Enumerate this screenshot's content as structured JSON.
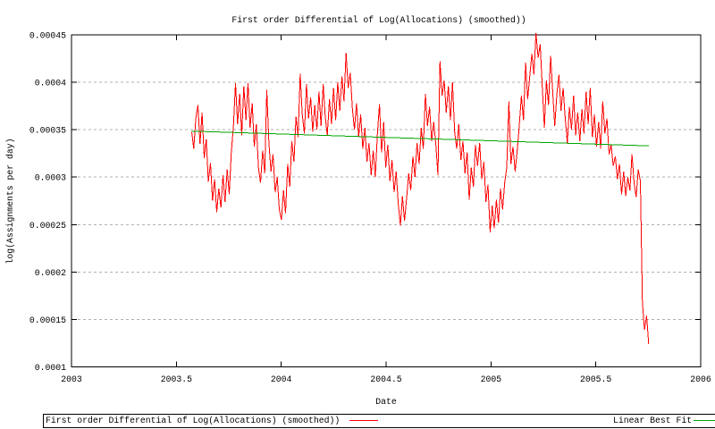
{
  "chart_data": {
    "type": "line",
    "title": "First order Differential of Log(Allocations) (smoothed))",
    "xlabel": "Date",
    "ylabel": "log(Assignments per day)",
    "xlim": [
      2003,
      2006
    ],
    "ylim": [
      0.0001,
      0.00045
    ],
    "grid": "horizontal-dashed",
    "legend_position": "bottom-strip-below-chart",
    "x_ticks": {
      "values": [
        2003,
        2003.5,
        2004,
        2004.5,
        2005,
        2005.5,
        2006
      ],
      "labels": [
        "2003",
        "2003.5",
        "2004",
        "2004.5",
        "2005",
        "2005.5",
        "2006"
      ]
    },
    "y_ticks": {
      "values": [
        0.0001,
        0.00015,
        0.0002,
        0.00025,
        0.0003,
        0.00035,
        0.0004,
        0.00045
      ],
      "labels": [
        "0.0001",
        "0.00015",
        "0.0002",
        "0.00025",
        "0.0003",
        "0.00035",
        "0.0004",
        "0.00045"
      ]
    },
    "series": [
      {
        "name": "First order Differential of Log(Allocations) (smoothed))",
        "color": "#ff0000",
        "x_start": 2003.573,
        "x_step": 0.00995,
        "y_unit": 1e-05,
        "values": [
          34.8,
          33.0,
          36.2,
          37.6,
          33.5,
          36.8,
          32.0,
          34.0,
          29.5,
          31.5,
          27.5,
          29.8,
          26.3,
          28.8,
          26.8,
          30.2,
          27.4,
          30.8,
          28.2,
          32.6,
          35.4,
          39.9,
          35.6,
          38.8,
          34.4,
          39.6,
          36.0,
          39.9,
          35.2,
          37.8,
          33.2,
          35.6,
          31.0,
          29.4,
          32.8,
          30.4,
          39.2,
          33.6,
          30.6,
          32.4,
          28.4,
          30.0,
          26.6,
          25.5,
          28.6,
          26.2,
          31.4,
          29.0,
          33.8,
          31.6,
          36.4,
          34.2,
          40.9,
          36.6,
          34.6,
          39.8,
          36.2,
          38.4,
          34.8,
          37.6,
          35.0,
          39.0,
          35.4,
          39.8,
          36.4,
          34.4,
          38.2,
          35.6,
          39.4,
          36.0,
          40.0,
          37.0,
          40.6,
          38.0,
          43.1,
          39.4,
          41.0,
          37.2,
          35.0,
          37.8,
          34.2,
          36.6,
          33.0,
          35.2,
          31.6,
          33.6,
          30.2,
          32.8,
          30.0,
          34.6,
          37.7,
          32.6,
          35.8,
          31.0,
          33.4,
          29.6,
          31.8,
          28.4,
          30.6,
          27.2,
          24.9,
          28.0,
          25.4,
          27.8,
          30.4,
          28.6,
          32.2,
          30.0,
          33.6,
          31.4,
          35.2,
          33.0,
          38.8,
          35.4,
          37.4,
          33.8,
          35.8,
          33.4,
          30.2,
          42.2,
          38.6,
          40.2,
          36.8,
          39.6,
          36.0,
          40.0,
          34.8,
          33.0,
          35.6,
          31.8,
          33.8,
          30.4,
          32.6,
          27.6,
          31.0,
          29.0,
          33.4,
          31.2,
          33.6,
          29.8,
          31.6,
          27.4,
          29.2,
          24.2,
          27.0,
          24.6,
          27.6,
          25.2,
          28.8,
          26.6,
          29.4,
          31.0,
          38.0,
          31.4,
          33.2,
          30.6,
          32.8,
          35.4,
          38.6,
          36.0,
          42.1,
          38.2,
          40.6,
          43.0,
          40.8,
          45.2,
          42.6,
          44.0,
          39.6,
          35.2,
          40.2,
          37.6,
          42.8,
          39.0,
          35.4,
          38.8,
          40.8,
          37.0,
          39.4,
          36.2,
          33.6,
          37.4,
          35.0,
          38.6,
          34.4,
          36.8,
          33.8,
          37.2,
          34.6,
          39.0,
          35.6,
          39.4,
          34.2,
          36.6,
          33.2,
          35.8,
          33.0,
          38.0,
          34.6,
          36.2,
          32.4,
          33.4,
          31.2,
          32.2,
          29.8,
          31.4,
          28.2,
          30.6,
          28.0,
          30.0,
          28.6,
          32.4,
          29.4,
          27.9,
          30.8,
          29.6,
          16.8,
          13.9,
          15.4,
          12.4
        ]
      },
      {
        "name": "Linear Best Fit",
        "color": "#00a400",
        "x": [
          2003.573,
          2005.752
        ],
        "y_unit": 1e-05,
        "y": [
          34.85,
          33.3
        ]
      }
    ]
  },
  "legend": {
    "series1": "First order Differential of Log(Allocations) (smoothed))",
    "series2": "Linear Best Fit"
  }
}
